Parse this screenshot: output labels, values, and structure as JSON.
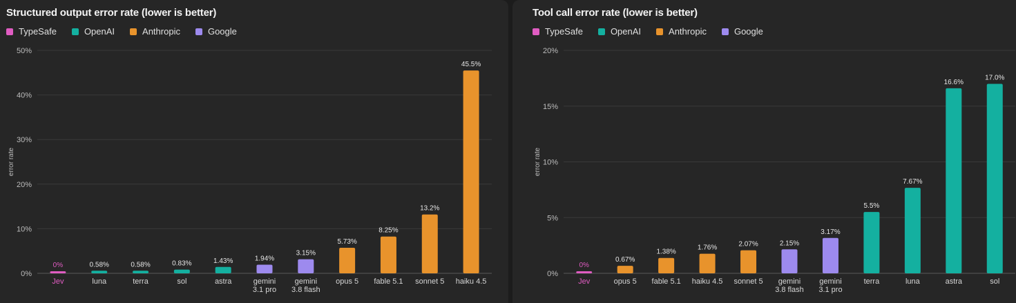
{
  "colors": {
    "TypeSafe": "#e05cc2",
    "OpenAI": "#14b0a0",
    "Anthropic": "#e8932c",
    "Google": "#9d8aee"
  },
  "legend": [
    "TypeSafe",
    "OpenAI",
    "Anthropic",
    "Google"
  ],
  "chart_data": [
    {
      "type": "bar",
      "title": "Structured output error rate (lower is better)",
      "ylabel": "error rate",
      "ylim": [
        0,
        50
      ],
      "yticks": [
        "0%",
        "10%",
        "20%",
        "30%",
        "40%",
        "50%"
      ],
      "grid": true,
      "legend_position": "top-left",
      "categories": [
        "Jev",
        "luna",
        "terra",
        "sol",
        "astra",
        "gemini 3.1 pro",
        "gemini 3.8 flash",
        "opus 5",
        "fable 5.1",
        "sonnet 5",
        "haiku 4.5"
      ],
      "category_lines": [
        [
          "Jev"
        ],
        [
          "luna"
        ],
        [
          "terra"
        ],
        [
          "sol"
        ],
        [
          "astra"
        ],
        [
          "gemini",
          "3.1 pro"
        ],
        [
          "gemini",
          "3.8 flash"
        ],
        [
          "opus 5"
        ],
        [
          "fable 5.1"
        ],
        [
          "sonnet 5"
        ],
        [
          "haiku 4.5"
        ]
      ],
      "groups": [
        "TypeSafe",
        "OpenAI",
        "OpenAI",
        "OpenAI",
        "OpenAI",
        "Google",
        "Google",
        "Anthropic",
        "Anthropic",
        "Anthropic",
        "Anthropic"
      ],
      "values": [
        0,
        0.58,
        0.58,
        0.83,
        1.43,
        1.94,
        3.15,
        5.73,
        8.25,
        13.2,
        45.5
      ],
      "labels": [
        "0%",
        "0.58%",
        "0.58%",
        "0.83%",
        "1.43%",
        "1.94%",
        "3.15%",
        "5.73%",
        "8.25%",
        "13.2%",
        "45.5%"
      ]
    },
    {
      "type": "bar",
      "title": "Tool call error rate (lower is better)",
      "ylabel": "error rate",
      "ylim": [
        0,
        20
      ],
      "yticks": [
        "0%",
        "5%",
        "10%",
        "15%",
        "20%"
      ],
      "grid": true,
      "legend_position": "top-left",
      "categories": [
        "Jev",
        "opus 5",
        "fable 5.1",
        "haiku 4.5",
        "sonnet 5",
        "gemini 3.8 flash",
        "gemini 3.1 pro",
        "terra",
        "luna",
        "astra",
        "sol"
      ],
      "category_lines": [
        [
          "Jev"
        ],
        [
          "opus 5"
        ],
        [
          "fable 5.1"
        ],
        [
          "haiku 4.5"
        ],
        [
          "sonnet 5"
        ],
        [
          "gemini",
          "3.8 flash"
        ],
        [
          "gemini",
          "3.1 pro"
        ],
        [
          "terra"
        ],
        [
          "luna"
        ],
        [
          "astra"
        ],
        [
          "sol"
        ]
      ],
      "groups": [
        "TypeSafe",
        "Anthropic",
        "Anthropic",
        "Anthropic",
        "Anthropic",
        "Google",
        "Google",
        "OpenAI",
        "OpenAI",
        "OpenAI",
        "OpenAI"
      ],
      "values": [
        0,
        0.67,
        1.38,
        1.76,
        2.07,
        2.15,
        3.17,
        5.5,
        7.67,
        16.6,
        17.0
      ],
      "labels": [
        "0%",
        "0.67%",
        "1.38%",
        "1.76%",
        "2.07%",
        "2.15%",
        "3.17%",
        "5.5%",
        "7.67%",
        "16.6%",
        "17.0%"
      ]
    }
  ]
}
